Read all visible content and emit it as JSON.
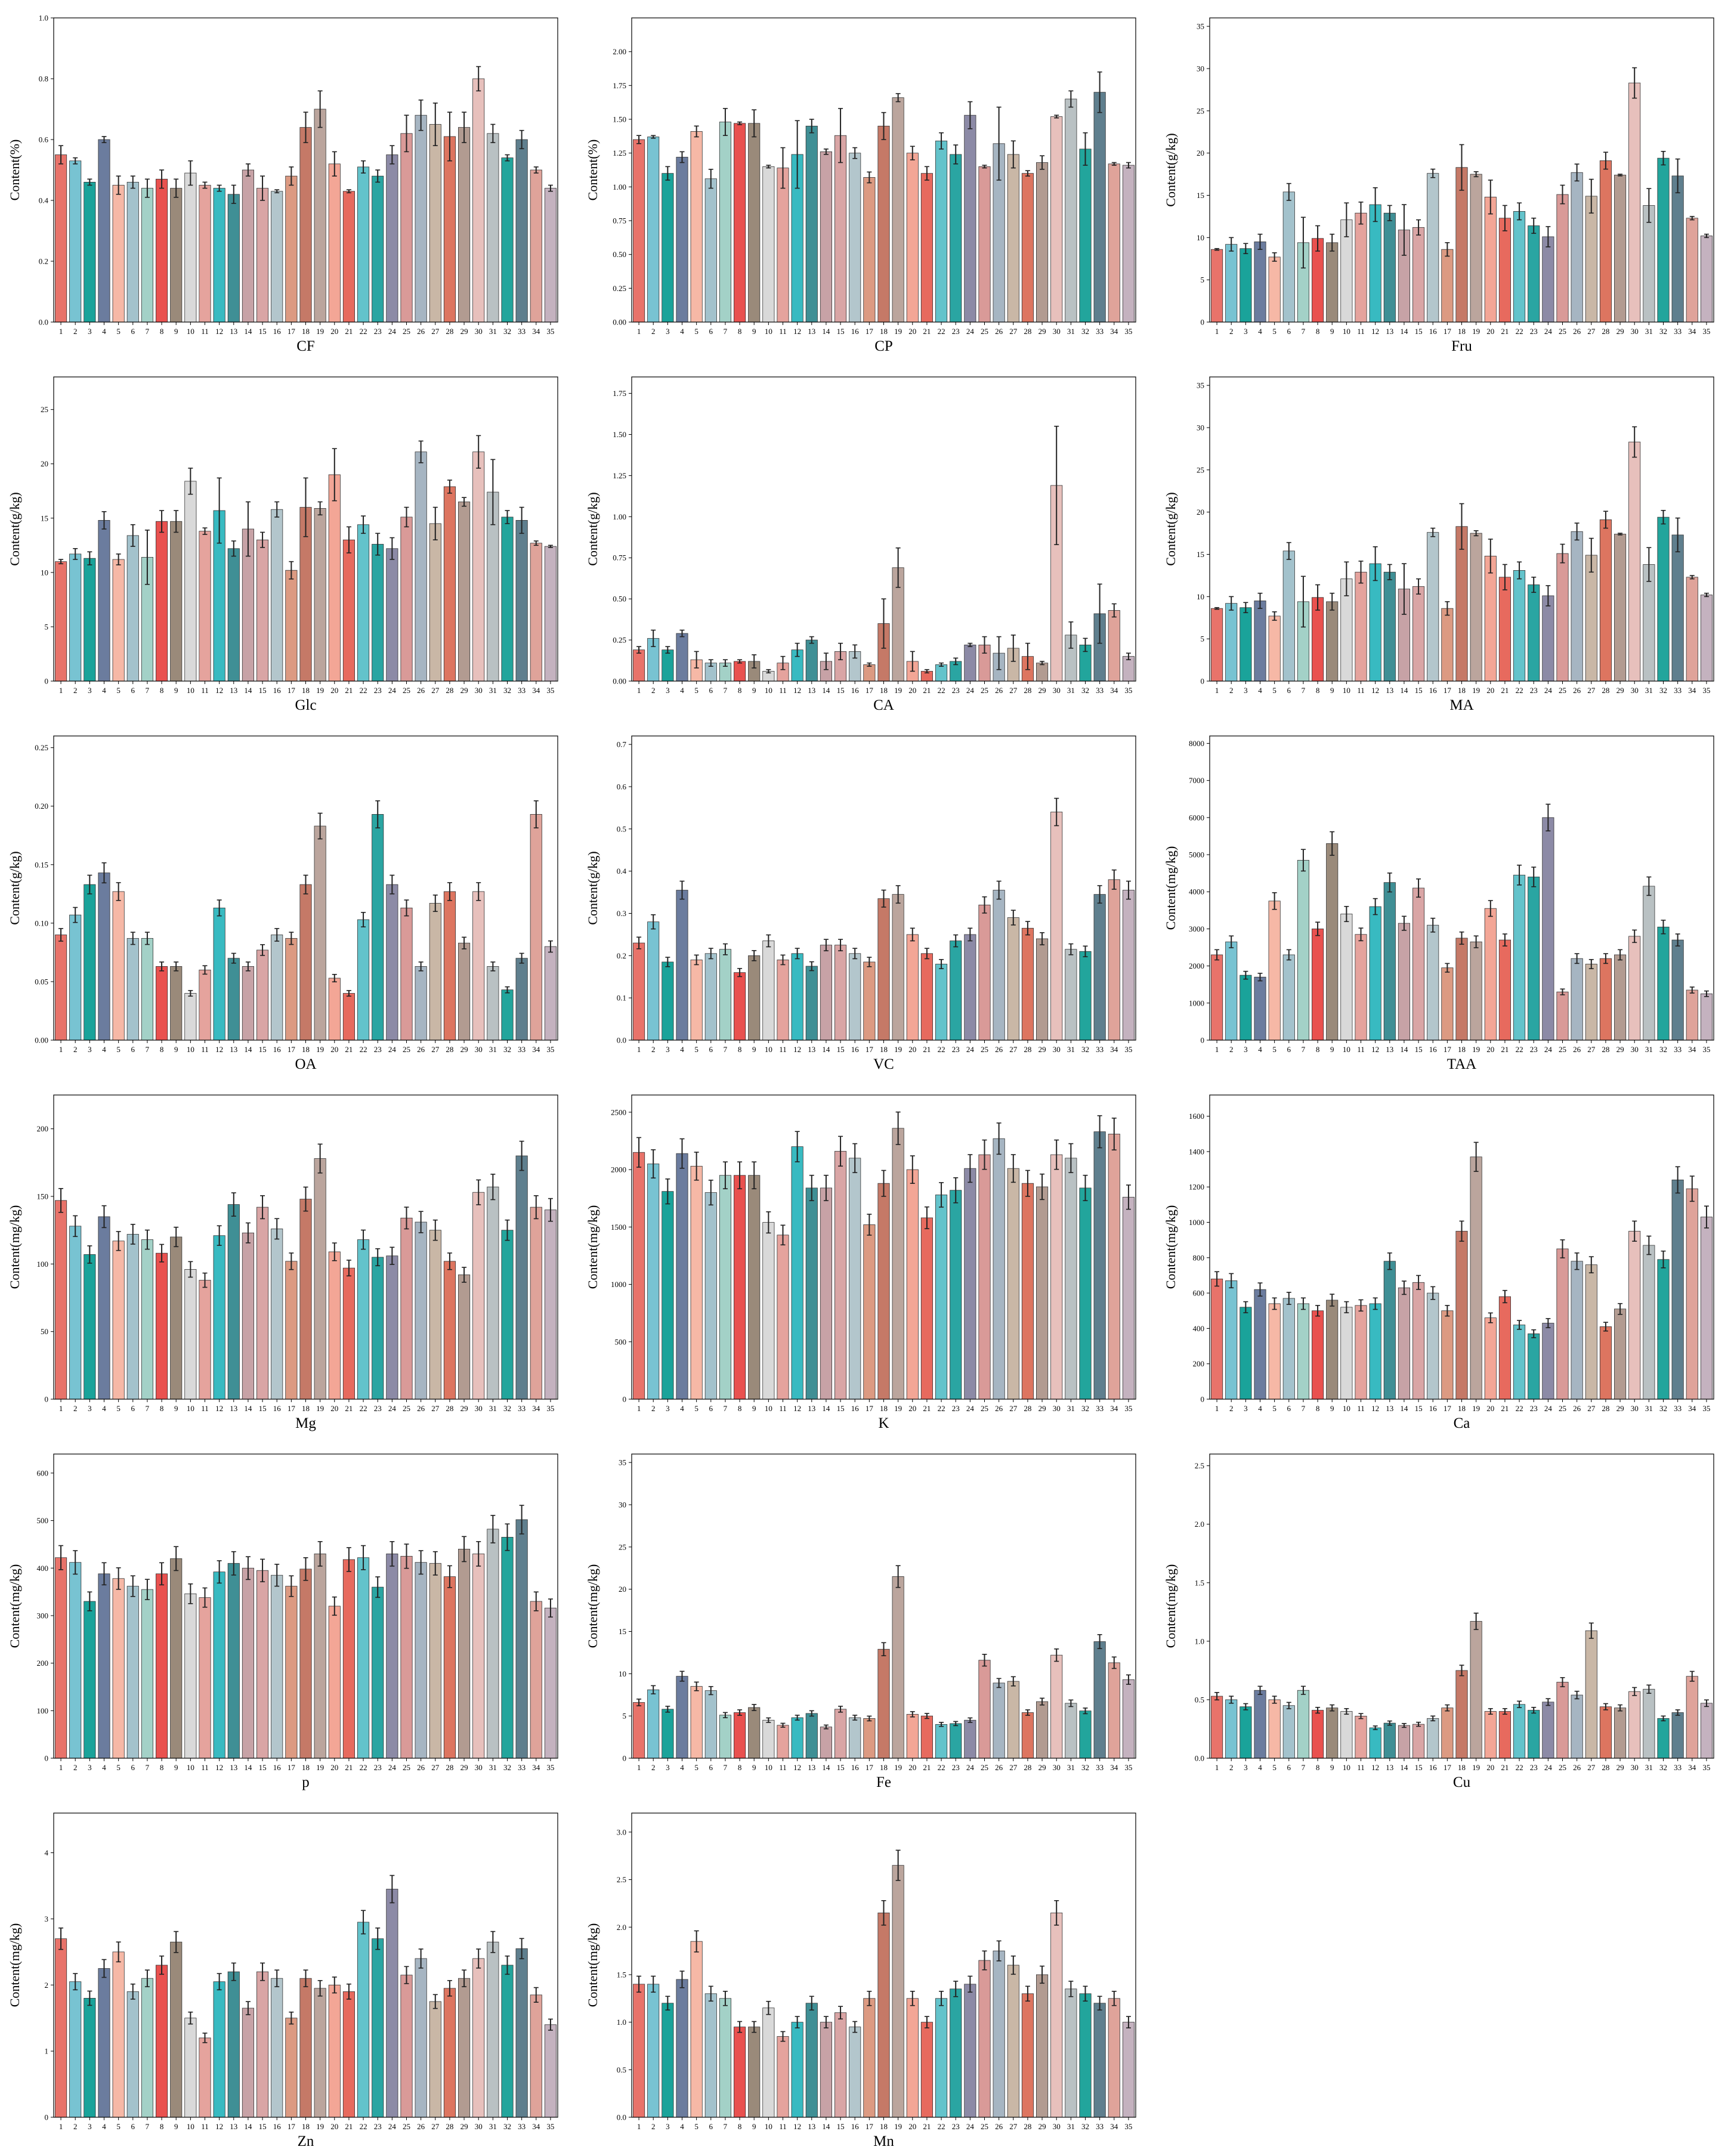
{
  "colors": [
    "#e8736a",
    "#78c3d2",
    "#1aa39a",
    "#6b7c9e",
    "#f6b8a6",
    "#a3c2cc",
    "#a3d1c7",
    "#e9514f",
    "#9a8a7a",
    "#d9d9d9",
    "#e5a39d",
    "#38bac1",
    "#3f8f95",
    "#c7a2a6",
    "#d9a5a5",
    "#b3c6cc",
    "#dc9a82",
    "#c57967",
    "#bba59d",
    "#f3a696",
    "#e76a5e",
    "#63c3cb",
    "#2aa5a2",
    "#8c8aa6",
    "#d99a98",
    "#a6b5c2",
    "#c9b7a6",
    "#dd7560",
    "#b29b91",
    "#e7c0bc",
    "#b9c1c3",
    "#22a59c",
    "#5f7f8e",
    "#dfa39a",
    "#c4b2bf"
  ],
  "categories": [
    "1",
    "2",
    "3",
    "4",
    "5",
    "6",
    "7",
    "8",
    "9",
    "10",
    "11",
    "12",
    "13",
    "14",
    "15",
    "16",
    "17",
    "18",
    "19",
    "20",
    "21",
    "22",
    "23",
    "24",
    "25",
    "26",
    "27",
    "28",
    "29",
    "30",
    "31",
    "32",
    "33",
    "34",
    "35"
  ],
  "chart_data": [
    {
      "type": "bar",
      "title": "",
      "xlabel": "CF",
      "ylabel": "Content(%)",
      "ylim": [
        0,
        1.0
      ],
      "yticks": [
        0.0,
        0.2,
        0.4,
        0.6,
        0.8,
        1.0
      ],
      "ytick_labels": [
        "0.0",
        "0.2",
        "0.4",
        "0.6",
        "0.8",
        "1.0"
      ],
      "values": [
        0.55,
        0.53,
        0.46,
        0.6,
        0.45,
        0.46,
        0.44,
        0.47,
        0.44,
        0.49,
        0.45,
        0.44,
        0.42,
        0.5,
        0.44,
        0.43,
        0.48,
        0.64,
        0.7,
        0.52,
        0.43,
        0.51,
        0.48,
        0.55,
        0.62,
        0.68,
        0.65,
        0.61,
        0.64,
        0.8,
        0.62,
        0.54,
        0.6,
        0.5,
        0.44
      ],
      "errors": [
        0.03,
        0.01,
        0.01,
        0.01,
        0.03,
        0.02,
        0.03,
        0.03,
        0.03,
        0.04,
        0.01,
        0.01,
        0.03,
        0.02,
        0.04,
        0.005,
        0.03,
        0.05,
        0.06,
        0.04,
        0.005,
        0.02,
        0.02,
        0.03,
        0.06,
        0.05,
        0.07,
        0.08,
        0.05,
        0.04,
        0.03,
        0.01,
        0.03,
        0.01,
        0.01
      ]
    },
    {
      "type": "bar",
      "title": "",
      "xlabel": "CP",
      "ylabel": "Content(%)",
      "ylim": [
        0,
        2.25
      ],
      "yticks": [
        0.0,
        0.25,
        0.5,
        0.75,
        1.0,
        1.25,
        1.5,
        1.75,
        2.0
      ],
      "ytick_labels": [
        "0.00",
        "0.25",
        "0.50",
        "0.75",
        "1.00",
        "1.25",
        "1.50",
        "1.75",
        "2.00"
      ],
      "values": [
        1.35,
        1.37,
        1.1,
        1.22,
        1.41,
        1.06,
        1.48,
        1.47,
        1.47,
        1.15,
        1.14,
        1.24,
        1.45,
        1.26,
        1.38,
        1.25,
        1.07,
        1.45,
        1.66,
        1.25,
        1.1,
        1.34,
        1.24,
        1.53,
        1.15,
        1.32,
        1.24,
        1.1,
        1.18,
        1.52,
        1.65,
        1.28,
        1.7,
        1.17,
        1.16
      ],
      "errors": [
        0.03,
        0.01,
        0.05,
        0.04,
        0.04,
        0.07,
        0.1,
        0.01,
        0.1,
        0.01,
        0.15,
        0.25,
        0.05,
        0.02,
        0.2,
        0.04,
        0.04,
        0.1,
        0.03,
        0.05,
        0.05,
        0.06,
        0.07,
        0.1,
        0.01,
        0.27,
        0.1,
        0.02,
        0.05,
        0.01,
        0.06,
        0.12,
        0.15,
        0.01,
        0.02
      ]
    },
    {
      "type": "bar",
      "title": "",
      "xlabel": "Fru",
      "ylabel": "Content(g/kg)",
      "ylim": [
        0,
        36
      ],
      "yticks": [
        0,
        5,
        10,
        15,
        20,
        25,
        30,
        35
      ],
      "ytick_labels": [
        "0",
        "5",
        "10",
        "15",
        "20",
        "25",
        "30",
        "35"
      ],
      "values": [
        8.6,
        9.2,
        8.7,
        9.5,
        7.7,
        15.4,
        9.4,
        9.9,
        9.4,
        12.1,
        12.9,
        13.9,
        12.9,
        10.9,
        11.2,
        17.6,
        8.6,
        18.3,
        17.5,
        14.8,
        12.3,
        13.1,
        11.4,
        10.1,
        15.1,
        17.7,
        14.9,
        19.1,
        17.4,
        28.3,
        13.8,
        19.4,
        17.3,
        12.3,
        10.2
      ],
      "errors": [
        0.1,
        0.8,
        0.6,
        0.9,
        0.5,
        1.0,
        3.0,
        1.5,
        1.0,
        2.0,
        1.3,
        2.0,
        0.9,
        3.0,
        0.9,
        0.5,
        0.8,
        2.7,
        0.3,
        2.0,
        1.5,
        1.0,
        0.9,
        1.2,
        1.1,
        1.0,
        2.0,
        1.0,
        0.1,
        1.8,
        2.0,
        0.8,
        2.0,
        0.2,
        0.2
      ]
    },
    {
      "type": "bar",
      "title": "",
      "xlabel": "Glc",
      "ylabel": "Content(g/kg)",
      "ylim": [
        0,
        28
      ],
      "yticks": [
        0,
        5,
        10,
        15,
        20,
        25
      ],
      "ytick_labels": [
        "0",
        "5",
        "10",
        "15",
        "20",
        "25"
      ],
      "values": [
        11.0,
        11.7,
        11.3,
        14.8,
        11.2,
        13.4,
        11.4,
        14.7,
        14.7,
        18.4,
        13.8,
        15.7,
        12.2,
        14.0,
        13.0,
        15.8,
        10.2,
        16.0,
        15.9,
        19.0,
        13.0,
        14.4,
        12.6,
        12.2,
        15.1,
        21.1,
        14.5,
        17.9,
        16.5,
        21.1,
        17.4,
        15.1,
        14.8,
        12.7,
        12.4
      ],
      "errors": [
        0.2,
        0.5,
        0.6,
        0.8,
        0.5,
        1.0,
        2.5,
        1.0,
        1.0,
        1.2,
        0.3,
        3.0,
        0.7,
        2.5,
        0.7,
        0.7,
        0.8,
        2.7,
        0.6,
        2.4,
        1.2,
        0.8,
        1.0,
        1.0,
        0.9,
        1.0,
        1.5,
        0.6,
        0.4,
        1.5,
        3.0,
        0.6,
        1.2,
        0.2,
        0.1
      ]
    },
    {
      "type": "bar",
      "title": "",
      "xlabel": "CA",
      "ylabel": "Content(g/kg)",
      "ylim": [
        0,
        1.85
      ],
      "yticks": [
        0.0,
        0.25,
        0.5,
        0.75,
        1.0,
        1.25,
        1.5,
        1.75
      ],
      "ytick_labels": [
        "0.00",
        "0.25",
        "0.50",
        "0.75",
        "1.00",
        "1.25",
        "1.50",
        "1.75"
      ],
      "values": [
        0.19,
        0.26,
        0.19,
        0.29,
        0.13,
        0.11,
        0.11,
        0.12,
        0.12,
        0.06,
        0.11,
        0.19,
        0.25,
        0.12,
        0.18,
        0.18,
        0.1,
        0.35,
        0.69,
        0.12,
        0.06,
        0.1,
        0.12,
        0.22,
        0.22,
        0.17,
        0.2,
        0.15,
        0.11,
        1.19,
        0.28,
        0.22,
        0.41,
        0.43,
        0.15
      ],
      "errors": [
        0.02,
        0.05,
        0.02,
        0.02,
        0.05,
        0.02,
        0.02,
        0.01,
        0.04,
        0.01,
        0.04,
        0.04,
        0.02,
        0.05,
        0.05,
        0.04,
        0.01,
        0.15,
        0.12,
        0.06,
        0.01,
        0.01,
        0.02,
        0.01,
        0.05,
        0.1,
        0.08,
        0.08,
        0.01,
        0.36,
        0.08,
        0.04,
        0.18,
        0.04,
        0.02
      ]
    },
    {
      "type": "bar",
      "title": "",
      "xlabel": "MA",
      "ylabel": "Content(g/kg)",
      "ylim": [
        0,
        36
      ],
      "yticks": [
        0,
        5,
        10,
        15,
        20,
        25,
        30,
        35
      ],
      "ytick_labels": [
        "0",
        "5",
        "10",
        "15",
        "20",
        "25",
        "30",
        "35"
      ],
      "values": [
        8.6,
        9.2,
        8.7,
        9.5,
        7.7,
        15.4,
        9.4,
        9.9,
        9.4,
        12.1,
        12.9,
        13.9,
        12.9,
        10.9,
        11.2,
        17.6,
        8.6,
        18.3,
        17.5,
        14.8,
        12.3,
        13.1,
        11.4,
        10.1,
        15.1,
        17.7,
        14.9,
        19.1,
        17.4,
        28.3,
        13.8,
        19.4,
        17.3,
        12.3,
        10.2
      ],
      "errors": [
        0.1,
        0.8,
        0.6,
        0.9,
        0.5,
        1.0,
        3.0,
        1.5,
        1.0,
        2.0,
        1.3,
        2.0,
        0.9,
        3.0,
        0.9,
        0.5,
        0.8,
        2.7,
        0.3,
        2.0,
        1.5,
        1.0,
        0.9,
        1.2,
        1.1,
        1.0,
        2.0,
        1.0,
        0.1,
        1.8,
        2.0,
        0.8,
        2.0,
        0.2,
        0.2
      ]
    },
    {
      "type": "bar",
      "title": "",
      "xlabel": "OA",
      "ylabel": "Content(g/kg)",
      "ylim": [
        0,
        0.26
      ],
      "yticks": [
        0.0,
        0.05,
        0.1,
        0.15,
        0.2,
        0.25
      ],
      "ytick_labels": [
        "0.00",
        "0.05",
        "0.10",
        "0.15",
        "0.20",
        "0.25"
      ],
      "values": [
        0.09,
        0.107,
        0.133,
        0.143,
        0.127,
        0.087,
        0.087,
        0.063,
        0.063,
        0.04,
        0.06,
        0.113,
        0.07,
        0.063,
        0.077,
        0.09,
        0.087,
        0.133,
        0.183,
        0.053,
        0.04,
        0.103,
        0.193,
        0.133,
        0.113,
        0.063,
        0.117,
        0.127,
        0.083,
        0.127,
        0.063,
        0.043,
        0.07,
        0.193,
        0.08
      ]
    },
    {
      "type": "bar",
      "title": "",
      "xlabel": "VC",
      "ylabel": "Content(g/kg)",
      "ylim": [
        0,
        0.72
      ],
      "yticks": [
        0.0,
        0.1,
        0.2,
        0.3,
        0.4,
        0.5,
        0.6,
        0.7
      ],
      "ytick_labels": [
        "0.0",
        "0.1",
        "0.2",
        "0.3",
        "0.4",
        "0.5",
        "0.6",
        "0.7"
      ],
      "values": [
        0.23,
        0.28,
        0.185,
        0.355,
        0.19,
        0.205,
        0.215,
        0.16,
        0.2,
        0.235,
        0.19,
        0.205,
        0.175,
        0.225,
        0.225,
        0.205,
        0.185,
        0.335,
        0.345,
        0.25,
        0.205,
        0.18,
        0.235,
        0.25,
        0.32,
        0.355,
        0.29,
        0.265,
        0.24,
        0.54,
        0.215,
        0.21,
        0.345,
        0.38,
        0.355
      ]
    },
    {
      "type": "bar",
      "title": "",
      "xlabel": "TAA",
      "ylabel": "Content(mg/kg)",
      "ylim": [
        0,
        8200
      ],
      "yticks": [
        0,
        1000,
        2000,
        3000,
        4000,
        5000,
        6000,
        7000,
        8000
      ],
      "ytick_labels": [
        "0",
        "1000",
        "2000",
        "3000",
        "4000",
        "5000",
        "6000",
        "7000",
        "8000"
      ],
      "values": [
        2300,
        2650,
        1750,
        1700,
        3750,
        2300,
        4850,
        3000,
        5300,
        3400,
        2850,
        3600,
        4250,
        3150,
        4100,
        3100,
        1950,
        2750,
        2650,
        3550,
        2700,
        4450,
        4400,
        6000,
        1300,
        2200,
        2050,
        2200,
        2300,
        2800,
        4150,
        3050,
        2700,
        1350,
        1250
      ]
    },
    {
      "type": "bar",
      "title": "",
      "xlabel": "Mg",
      "ylabel": "Content(mg/kg)",
      "ylim": [
        0,
        225
      ],
      "yticks": [
        0,
        50,
        100,
        150,
        200
      ],
      "ytick_labels": [
        "0",
        "50",
        "100",
        "150",
        "200"
      ],
      "values": [
        147,
        128,
        107,
        135,
        117,
        122,
        118,
        108,
        120,
        96,
        88,
        121,
        144,
        123,
        142,
        126,
        102,
        148,
        178,
        109,
        97,
        118,
        105,
        106,
        134,
        131,
        125,
        102,
        92,
        153,
        157,
        125,
        180,
        142,
        140
      ]
    },
    {
      "type": "bar",
      "title": "",
      "xlabel": "K",
      "ylabel": "Content(mg/kg)",
      "ylim": [
        0,
        2650
      ],
      "yticks": [
        0,
        500,
        1000,
        1500,
        2000,
        2500
      ],
      "ytick_labels": [
        "0",
        "500",
        "1000",
        "1500",
        "2000",
        "2500"
      ],
      "values": [
        2150,
        2050,
        1810,
        2140,
        2030,
        1800,
        1950,
        1950,
        1950,
        1540,
        1430,
        2200,
        1840,
        1840,
        2160,
        2100,
        1520,
        1880,
        2360,
        2000,
        1580,
        1780,
        1820,
        2010,
        2130,
        2270,
        2010,
        1880,
        1850,
        2130,
        2100,
        1840,
        2330,
        2310,
        1760
      ]
    },
    {
      "type": "bar",
      "title": "",
      "xlabel": "Ca",
      "ylabel": "Content(mg/kg)",
      "ylim": [
        0,
        1720
      ],
      "yticks": [
        0,
        200,
        400,
        600,
        800,
        1000,
        1200,
        1400,
        1600
      ],
      "ytick_labels": [
        "0",
        "200",
        "400",
        "600",
        "800",
        "1000",
        "1200",
        "1400",
        "1600"
      ],
      "values": [
        680,
        670,
        520,
        620,
        540,
        570,
        540,
        500,
        560,
        520,
        530,
        540,
        780,
        630,
        660,
        600,
        500,
        950,
        1370,
        460,
        580,
        420,
        370,
        430,
        850,
        780,
        760,
        410,
        510,
        950,
        870,
        790,
        1240,
        1190,
        1030
      ]
    },
    {
      "type": "bar",
      "title": "",
      "xlabel": "p",
      "ylabel": "Content(mg/kg)",
      "ylim": [
        0,
        640
      ],
      "yticks": [
        0,
        100,
        200,
        300,
        400,
        500,
        600
      ],
      "ytick_labels": [
        "0",
        "100",
        "200",
        "300",
        "400",
        "500",
        "600"
      ],
      "values": [
        422,
        412,
        330,
        388,
        378,
        362,
        355,
        388,
        420,
        346,
        338,
        392,
        410,
        400,
        395,
        385,
        362,
        398,
        430,
        320,
        418,
        422,
        360,
        430,
        425,
        412,
        410,
        382,
        440,
        430,
        482,
        465,
        502,
        330,
        316
      ]
    },
    {
      "type": "bar",
      "title": "",
      "xlabel": "Fe",
      "ylabel": "Content(mg/kg)",
      "ylim": [
        0,
        36
      ],
      "yticks": [
        0,
        5,
        10,
        15,
        20,
        25,
        30,
        35
      ],
      "ytick_labels": [
        "0",
        "5",
        "10",
        "15",
        "20",
        "25",
        "30",
        "35"
      ],
      "values": [
        6.6,
        8.1,
        5.8,
        9.7,
        8.5,
        8.0,
        5.1,
        5.4,
        6.0,
        4.5,
        3.9,
        4.8,
        5.3,
        3.7,
        5.8,
        4.8,
        4.7,
        12.9,
        21.5,
        5.2,
        5.0,
        4.0,
        4.1,
        4.5,
        11.6,
        8.9,
        9.1,
        5.4,
        6.7,
        12.2,
        6.5,
        5.6,
        13.8,
        11.3,
        9.3
      ]
    },
    {
      "type": "bar",
      "title": "",
      "xlabel": "Cu",
      "ylabel": "Content(mg/kg)",
      "ylim": [
        0,
        2.6
      ],
      "yticks": [
        0.0,
        0.5,
        1.0,
        1.5,
        2.0,
        2.5
      ],
      "ytick_labels": [
        "0.0",
        "0.5",
        "1.0",
        "1.5",
        "2.0",
        "2.5"
      ],
      "values": [
        0.53,
        0.5,
        0.44,
        0.58,
        0.5,
        0.45,
        0.58,
        0.41,
        0.43,
        0.4,
        0.36,
        0.26,
        0.3,
        0.28,
        0.29,
        0.34,
        0.43,
        0.75,
        1.17,
        0.4,
        0.4,
        0.46,
        0.41,
        0.48,
        0.65,
        0.54,
        1.09,
        0.44,
        0.43,
        0.57,
        0.59,
        0.34,
        0.39,
        0.7,
        0.47
      ]
    },
    {
      "type": "bar",
      "title": "",
      "xlabel": "Zn",
      "ylabel": "Content(mg/kg)",
      "ylim": [
        0,
        4.6
      ],
      "yticks": [
        0,
        1,
        2,
        3,
        4
      ],
      "ytick_labels": [
        "0",
        "1",
        "2",
        "3",
        "4"
      ],
      "values": [
        2.7,
        2.05,
        1.8,
        2.25,
        2.5,
        1.9,
        2.1,
        2.3,
        2.65,
        1.5,
        1.2,
        2.05,
        2.2,
        1.65,
        2.2,
        2.1,
        1.5,
        2.1,
        1.95,
        2.0,
        1.9,
        2.95,
        2.7,
        3.45,
        2.15,
        2.4,
        1.75,
        1.95,
        2.1,
        2.4,
        2.65,
        2.3,
        2.55,
        1.85,
        1.4
      ]
    },
    {
      "type": "bar",
      "title": "",
      "xlabel": "Mn",
      "ylabel": "Content(mg/kg)",
      "ylim": [
        0,
        3.2
      ],
      "yticks": [
        0.0,
        0.5,
        1.0,
        1.5,
        2.0,
        2.5,
        3.0
      ],
      "ytick_labels": [
        "0.0",
        "0.5",
        "1.0",
        "1.5",
        "2.0",
        "2.5",
        "3.0"
      ],
      "values": [
        1.4,
        1.4,
        1.2,
        1.45,
        1.85,
        1.3,
        1.25,
        0.95,
        0.95,
        1.15,
        0.85,
        1.0,
        1.2,
        1.0,
        1.1,
        0.95,
        1.25,
        2.15,
        2.65,
        1.25,
        1.0,
        1.25,
        1.35,
        1.4,
        1.65,
        1.75,
        1.6,
        1.3,
        1.5,
        2.15,
        1.35,
        1.3,
        1.2,
        1.25,
        1.0
      ]
    }
  ]
}
